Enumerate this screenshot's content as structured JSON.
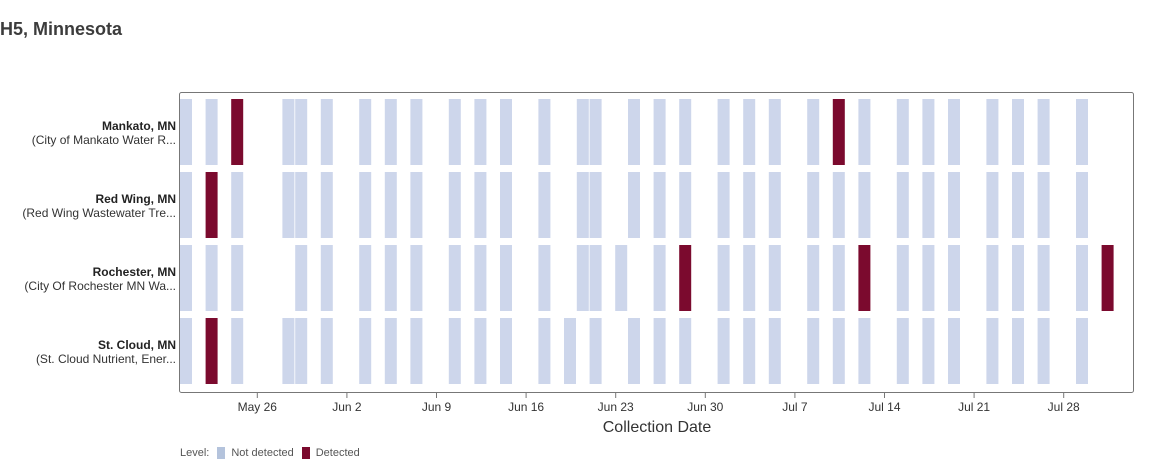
{
  "title": "H5, Minnesota",
  "legend": {
    "label": "Level:",
    "items": [
      {
        "name": "Not detected",
        "color": "#cdd6eb",
        "swatch": "#b4c3dc"
      },
      {
        "name": "Detected",
        "color": "#7b0a2e",
        "swatch": "#7b0a2e"
      }
    ]
  },
  "sites": [
    {
      "name": "Mankato, MN",
      "facility": "(City of Mankato Water R..."
    },
    {
      "name": "Red Wing, MN",
      "facility": "(Red Wing Wastewater Tre..."
    },
    {
      "name": "Rochester, MN",
      "facility": "(City Of Rochester MN Wa..."
    },
    {
      "name": "St. Cloud, MN",
      "facility": "(St. Cloud Nutrient, Ener..."
    }
  ],
  "chart_data": {
    "type": "heatmap",
    "title": "H5, Minnesota",
    "xlabel": "Collection Date",
    "ylabel": "",
    "x_range": [
      "2024-05-20",
      "2024-08-01"
    ],
    "x_ticks": [
      "May 26",
      "Jun 2",
      "Jun 9",
      "Jun 16",
      "Jun 23",
      "Jun 30",
      "Jul 7",
      "Jul 14",
      "Jul 21",
      "Jul 28"
    ],
    "x_tick_dates": [
      "2024-05-26",
      "2024-06-02",
      "2024-06-09",
      "2024-06-16",
      "2024-06-23",
      "2024-06-30",
      "2024-07-07",
      "2024-07-14",
      "2024-07-21",
      "2024-07-28"
    ],
    "categories": [
      "Mankato, MN",
      "Red Wing, MN",
      "Rochester, MN",
      "St. Cloud, MN"
    ],
    "levels": [
      "Not detected",
      "Detected"
    ],
    "series": [
      {
        "name": "Mankato, MN",
        "values": [
          [
            "2024-05-20",
            "Not detected"
          ],
          [
            "2024-05-22",
            "Not detected"
          ],
          [
            "2024-05-24",
            "Detected"
          ],
          [
            "2024-05-28",
            "Not detected"
          ],
          [
            "2024-05-29",
            "Not detected"
          ],
          [
            "2024-05-31",
            "Not detected"
          ],
          [
            "2024-06-03",
            "Not detected"
          ],
          [
            "2024-06-05",
            "Not detected"
          ],
          [
            "2024-06-07",
            "Not detected"
          ],
          [
            "2024-06-10",
            "Not detected"
          ],
          [
            "2024-06-12",
            "Not detected"
          ],
          [
            "2024-06-14",
            "Not detected"
          ],
          [
            "2024-06-17",
            "Not detected"
          ],
          [
            "2024-06-20",
            "Not detected"
          ],
          [
            "2024-06-21",
            "Not detected"
          ],
          [
            "2024-06-24",
            "Not detected"
          ],
          [
            "2024-06-26",
            "Not detected"
          ],
          [
            "2024-06-28",
            "Not detected"
          ],
          [
            "2024-07-01",
            "Not detected"
          ],
          [
            "2024-07-03",
            "Not detected"
          ],
          [
            "2024-07-05",
            "Not detected"
          ],
          [
            "2024-07-08",
            "Not detected"
          ],
          [
            "2024-07-10",
            "Detected"
          ],
          [
            "2024-07-12",
            "Not detected"
          ],
          [
            "2024-07-15",
            "Not detected"
          ],
          [
            "2024-07-17",
            "Not detected"
          ],
          [
            "2024-07-19",
            "Not detected"
          ],
          [
            "2024-07-22",
            "Not detected"
          ],
          [
            "2024-07-24",
            "Not detected"
          ],
          [
            "2024-07-26",
            "Not detected"
          ],
          [
            "2024-07-29",
            "Not detected"
          ]
        ]
      },
      {
        "name": "Red Wing, MN",
        "values": [
          [
            "2024-05-20",
            "Not detected"
          ],
          [
            "2024-05-22",
            "Detected"
          ],
          [
            "2024-05-24",
            "Not detected"
          ],
          [
            "2024-05-28",
            "Not detected"
          ],
          [
            "2024-05-29",
            "Not detected"
          ],
          [
            "2024-05-31",
            "Not detected"
          ],
          [
            "2024-06-03",
            "Not detected"
          ],
          [
            "2024-06-05",
            "Not detected"
          ],
          [
            "2024-06-07",
            "Not detected"
          ],
          [
            "2024-06-10",
            "Not detected"
          ],
          [
            "2024-06-12",
            "Not detected"
          ],
          [
            "2024-06-14",
            "Not detected"
          ],
          [
            "2024-06-17",
            "Not detected"
          ],
          [
            "2024-06-20",
            "Not detected"
          ],
          [
            "2024-06-21",
            "Not detected"
          ],
          [
            "2024-06-24",
            "Not detected"
          ],
          [
            "2024-06-26",
            "Not detected"
          ],
          [
            "2024-06-28",
            "Not detected"
          ],
          [
            "2024-07-01",
            "Not detected"
          ],
          [
            "2024-07-03",
            "Not detected"
          ],
          [
            "2024-07-05",
            "Not detected"
          ],
          [
            "2024-07-08",
            "Not detected"
          ],
          [
            "2024-07-10",
            "Not detected"
          ],
          [
            "2024-07-12",
            "Not detected"
          ],
          [
            "2024-07-15",
            "Not detected"
          ],
          [
            "2024-07-17",
            "Not detected"
          ],
          [
            "2024-07-19",
            "Not detected"
          ],
          [
            "2024-07-22",
            "Not detected"
          ],
          [
            "2024-07-24",
            "Not detected"
          ],
          [
            "2024-07-26",
            "Not detected"
          ],
          [
            "2024-07-29",
            "Not detected"
          ]
        ]
      },
      {
        "name": "Rochester, MN",
        "values": [
          [
            "2024-05-20",
            "Not detected"
          ],
          [
            "2024-05-22",
            "Not detected"
          ],
          [
            "2024-05-24",
            "Not detected"
          ],
          [
            "2024-05-29",
            "Not detected"
          ],
          [
            "2024-05-31",
            "Not detected"
          ],
          [
            "2024-06-03",
            "Not detected"
          ],
          [
            "2024-06-05",
            "Not detected"
          ],
          [
            "2024-06-07",
            "Not detected"
          ],
          [
            "2024-06-10",
            "Not detected"
          ],
          [
            "2024-06-12",
            "Not detected"
          ],
          [
            "2024-06-14",
            "Not detected"
          ],
          [
            "2024-06-17",
            "Not detected"
          ],
          [
            "2024-06-20",
            "Not detected"
          ],
          [
            "2024-06-21",
            "Not detected"
          ],
          [
            "2024-06-23",
            "Not detected"
          ],
          [
            "2024-06-26",
            "Not detected"
          ],
          [
            "2024-06-28",
            "Detected"
          ],
          [
            "2024-07-01",
            "Not detected"
          ],
          [
            "2024-07-03",
            "Not detected"
          ],
          [
            "2024-07-05",
            "Not detected"
          ],
          [
            "2024-07-08",
            "Not detected"
          ],
          [
            "2024-07-10",
            "Not detected"
          ],
          [
            "2024-07-12",
            "Detected"
          ],
          [
            "2024-07-15",
            "Not detected"
          ],
          [
            "2024-07-17",
            "Not detected"
          ],
          [
            "2024-07-19",
            "Not detected"
          ],
          [
            "2024-07-22",
            "Not detected"
          ],
          [
            "2024-07-24",
            "Not detected"
          ],
          [
            "2024-07-26",
            "Not detected"
          ],
          [
            "2024-07-29",
            "Not detected"
          ],
          [
            "2024-07-31",
            "Detected"
          ]
        ]
      },
      {
        "name": "St. Cloud, MN",
        "values": [
          [
            "2024-05-20",
            "Not detected"
          ],
          [
            "2024-05-22",
            "Detected"
          ],
          [
            "2024-05-24",
            "Not detected"
          ],
          [
            "2024-05-28",
            "Not detected"
          ],
          [
            "2024-05-29",
            "Not detected"
          ],
          [
            "2024-05-31",
            "Not detected"
          ],
          [
            "2024-06-03",
            "Not detected"
          ],
          [
            "2024-06-05",
            "Not detected"
          ],
          [
            "2024-06-07",
            "Not detected"
          ],
          [
            "2024-06-10",
            "Not detected"
          ],
          [
            "2024-06-12",
            "Not detected"
          ],
          [
            "2024-06-14",
            "Not detected"
          ],
          [
            "2024-06-17",
            "Not detected"
          ],
          [
            "2024-06-19",
            "Not detected"
          ],
          [
            "2024-06-21",
            "Not detected"
          ],
          [
            "2024-06-24",
            "Not detected"
          ],
          [
            "2024-06-26",
            "Not detected"
          ],
          [
            "2024-06-28",
            "Not detected"
          ],
          [
            "2024-07-01",
            "Not detected"
          ],
          [
            "2024-07-03",
            "Not detected"
          ],
          [
            "2024-07-05",
            "Not detected"
          ],
          [
            "2024-07-08",
            "Not detected"
          ],
          [
            "2024-07-10",
            "Not detected"
          ],
          [
            "2024-07-12",
            "Not detected"
          ],
          [
            "2024-07-15",
            "Not detected"
          ],
          [
            "2024-07-17",
            "Not detected"
          ],
          [
            "2024-07-19",
            "Not detected"
          ],
          [
            "2024-07-22",
            "Not detected"
          ],
          [
            "2024-07-24",
            "Not detected"
          ],
          [
            "2024-07-26",
            "Not detected"
          ],
          [
            "2024-07-29",
            "Not detected"
          ]
        ]
      }
    ]
  }
}
